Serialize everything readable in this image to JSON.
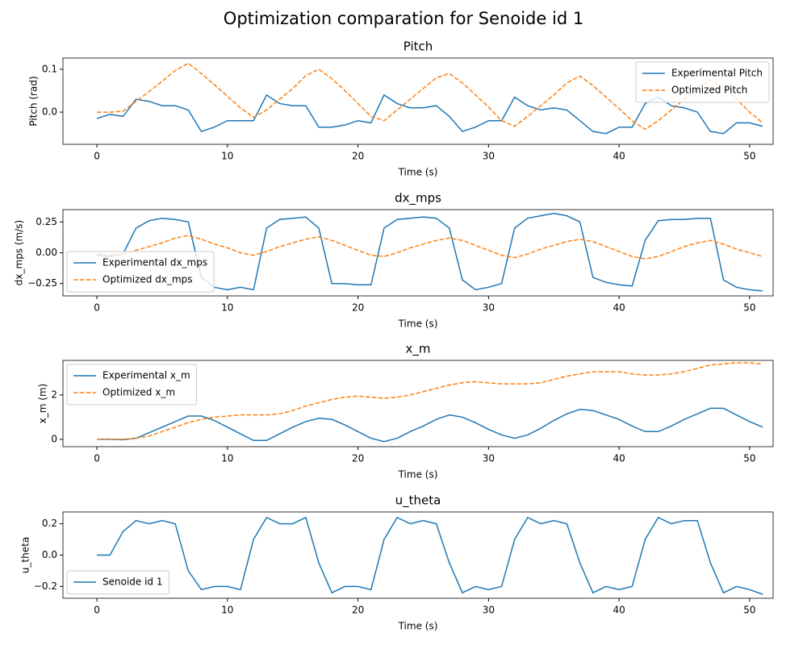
{
  "title": "Optimization comparation for Senoide id 1",
  "chart_data": [
    {
      "type": "line",
      "title": "Pitch",
      "xlabel": "Time (s)",
      "ylabel": "Pitch (rad)",
      "legend": "upper right",
      "x": [
        0,
        1,
        2,
        3,
        4,
        5,
        6,
        7,
        8,
        9,
        10,
        11,
        12,
        13,
        14,
        15,
        16,
        17,
        18,
        19,
        20,
        21,
        22,
        23,
        24,
        25,
        26,
        27,
        28,
        29,
        30,
        31,
        32,
        33,
        34,
        35,
        36,
        37,
        38,
        39,
        40,
        41,
        42,
        43,
        44,
        45,
        46,
        47,
        48,
        49,
        50,
        51
      ],
      "xlim": [
        -2.6,
        51.8
      ],
      "xticks": [
        0,
        10,
        20,
        30,
        40,
        50
      ],
      "ylim": [
        -0.075,
        0.126
      ],
      "yticks": [
        {
          "value": 0,
          "label": "0.0"
        },
        0.1
      ],
      "series": [
        {
          "name": "Experimental Pitch",
          "color": "#1f77b4",
          "linestyle": "solid",
          "values": [
            -0.015,
            -0.005,
            -0.01,
            0.03,
            0.025,
            0.015,
            0.015,
            0.005,
            -0.045,
            -0.035,
            -0.02,
            -0.02,
            -0.02,
            0.04,
            0.02,
            0.015,
            0.015,
            -0.035,
            -0.035,
            -0.03,
            -0.02,
            -0.025,
            0.04,
            0.02,
            0.01,
            0.01,
            0.015,
            -0.01,
            -0.045,
            -0.035,
            -0.02,
            -0.02,
            0.035,
            0.015,
            0.005,
            0.01,
            0.005,
            -0.02,
            -0.045,
            -0.05,
            -0.035,
            -0.035,
            0.02,
            0.035,
            0.015,
            0.01,
            0.0,
            -0.045,
            -0.05,
            -0.025,
            -0.025,
            -0.033
          ]
        },
        {
          "name": "Optimized Pitch",
          "color": "#ff7f0e",
          "linestyle": "dashed",
          "values": [
            0,
            0,
            0.002,
            0.025,
            0.048,
            0.072,
            0.097,
            0.114,
            0.09,
            0.064,
            0.037,
            0.01,
            -0.012,
            0.005,
            0.03,
            0.055,
            0.085,
            0.1,
            0.078,
            0.05,
            0.02,
            -0.01,
            -0.02,
            0.005,
            0.03,
            0.055,
            0.08,
            0.09,
            0.068,
            0.04,
            0.012,
            -0.02,
            -0.033,
            -0.01,
            0.015,
            0.04,
            0.068,
            0.084,
            0.062,
            0.035,
            0.008,
            -0.02,
            -0.04,
            -0.02,
            0.005,
            0.03,
            0.055,
            0.075,
            0.055,
            0.03,
            0.0,
            -0.025
          ]
        }
      ]
    },
    {
      "type": "line",
      "title": "dx_mps",
      "xlabel": "Time (s)",
      "ylabel": "dx_mps (m/s)",
      "legend": "lower left",
      "x": [
        0,
        1,
        2,
        3,
        4,
        5,
        6,
        7,
        8,
        9,
        10,
        11,
        12,
        13,
        14,
        15,
        16,
        17,
        18,
        19,
        20,
        21,
        22,
        23,
        24,
        25,
        26,
        27,
        28,
        29,
        30,
        31,
        32,
        33,
        34,
        35,
        36,
        37,
        38,
        39,
        40,
        41,
        42,
        43,
        44,
        45,
        46,
        47,
        48,
        49,
        50,
        51
      ],
      "xlim": [
        -2.6,
        51.8
      ],
      "xticks": [
        0,
        10,
        20,
        30,
        40,
        50
      ],
      "ylim": [
        -0.35,
        0.35
      ],
      "yticks": [
        {
          "value": -0.25,
          "label": "−0.25"
        },
        {
          "value": 0,
          "label": "0.00"
        },
        0.25
      ],
      "series": [
        {
          "name": "Experimental dx_mps",
          "color": "#1f77b4",
          "linestyle": "solid",
          "values": [
            -0.02,
            -0.03,
            -0.01,
            0.2,
            0.26,
            0.28,
            0.27,
            0.25,
            -0.2,
            -0.28,
            -0.3,
            -0.28,
            -0.3,
            0.2,
            0.27,
            0.28,
            0.29,
            0.2,
            -0.25,
            -0.25,
            -0.26,
            -0.26,
            0.2,
            0.27,
            0.28,
            0.29,
            0.28,
            0.2,
            -0.22,
            -0.3,
            -0.28,
            -0.25,
            0.2,
            0.28,
            0.3,
            0.32,
            0.3,
            0.25,
            -0.2,
            -0.24,
            -0.26,
            -0.27,
            0.1,
            0.26,
            0.27,
            0.27,
            0.28,
            0.28,
            -0.22,
            -0.28,
            -0.3,
            -0.31
          ]
        },
        {
          "name": "Optimized dx_mps",
          "color": "#ff7f0e",
          "linestyle": "dashed",
          "values": [
            -0.01,
            -0.02,
            -0.01,
            0.02,
            0.05,
            0.08,
            0.12,
            0.14,
            0.11,
            0.07,
            0.04,
            0.0,
            -0.02,
            0.01,
            0.05,
            0.08,
            0.11,
            0.13,
            0.1,
            0.06,
            0.02,
            -0.02,
            -0.03,
            0.0,
            0.04,
            0.07,
            0.1,
            0.12,
            0.1,
            0.06,
            0.02,
            -0.02,
            -0.04,
            -0.01,
            0.03,
            0.06,
            0.09,
            0.11,
            0.09,
            0.05,
            0.01,
            -0.03,
            -0.05,
            -0.03,
            0.01,
            0.05,
            0.08,
            0.1,
            0.07,
            0.03,
            0.0,
            -0.03
          ]
        }
      ]
    },
    {
      "type": "line",
      "title": "x_m",
      "xlabel": "Time (s)",
      "ylabel": "x_m (m)",
      "legend": "upper left",
      "x": [
        0,
        1,
        2,
        3,
        4,
        5,
        6,
        7,
        8,
        9,
        10,
        11,
        12,
        13,
        14,
        15,
        16,
        17,
        18,
        19,
        20,
        21,
        22,
        23,
        24,
        25,
        26,
        27,
        28,
        29,
        30,
        31,
        32,
        33,
        34,
        35,
        36,
        37,
        38,
        39,
        40,
        41,
        42,
        43,
        44,
        45,
        46,
        47,
        48,
        49,
        50,
        51
      ],
      "xlim": [
        -2.6,
        51.8
      ],
      "xticks": [
        0,
        10,
        20,
        30,
        40,
        50
      ],
      "ylim": [
        -0.33,
        3.56
      ],
      "yticks": [
        0,
        2
      ],
      "series": [
        {
          "name": "Experimental x_m",
          "color": "#1f77b4",
          "linestyle": "solid",
          "values": [
            0,
            0,
            -0.02,
            0.05,
            0.3,
            0.55,
            0.8,
            1.05,
            1.05,
            0.85,
            0.55,
            0.25,
            -0.05,
            -0.05,
            0.25,
            0.55,
            0.8,
            0.95,
            0.9,
            0.65,
            0.35,
            0.05,
            -0.1,
            0.05,
            0.35,
            0.6,
            0.9,
            1.1,
            1.0,
            0.75,
            0.45,
            0.2,
            0.05,
            0.2,
            0.5,
            0.85,
            1.15,
            1.35,
            1.3,
            1.1,
            0.9,
            0.6,
            0.35,
            0.35,
            0.6,
            0.9,
            1.15,
            1.4,
            1.4,
            1.1,
            0.8,
            0.55
          ]
        },
        {
          "name": "Optimized x_m",
          "color": "#ff7f0e",
          "linestyle": "dashed",
          "values": [
            0,
            0,
            0,
            0.05,
            0.15,
            0.35,
            0.55,
            0.75,
            0.9,
            1.0,
            1.05,
            1.1,
            1.1,
            1.1,
            1.15,
            1.3,
            1.5,
            1.65,
            1.8,
            1.9,
            1.95,
            1.9,
            1.85,
            1.9,
            2.0,
            2.15,
            2.3,
            2.45,
            2.55,
            2.6,
            2.55,
            2.5,
            2.5,
            2.5,
            2.55,
            2.7,
            2.85,
            2.95,
            3.05,
            3.05,
            3.05,
            2.95,
            2.9,
            2.9,
            2.95,
            3.05,
            3.2,
            3.35,
            3.4,
            3.45,
            3.45,
            3.4
          ]
        }
      ]
    },
    {
      "type": "line",
      "title": "u_theta",
      "xlabel": "Time (s)",
      "ylabel": "u_theta",
      "legend": "lower left",
      "x": [
        0,
        1,
        2,
        3,
        4,
        5,
        6,
        7,
        8,
        9,
        10,
        11,
        12,
        13,
        14,
        15,
        16,
        17,
        18,
        19,
        20,
        21,
        22,
        23,
        24,
        25,
        26,
        27,
        28,
        29,
        30,
        31,
        32,
        33,
        34,
        35,
        36,
        37,
        38,
        39,
        40,
        41,
        42,
        43,
        44,
        45,
        46,
        47,
        48,
        49,
        50,
        51
      ],
      "xlim": [
        -2.6,
        51.8
      ],
      "xticks": [
        0,
        10,
        20,
        30,
        40,
        50
      ],
      "ylim": [
        -0.275,
        0.275
      ],
      "yticks": [
        {
          "value": -0.2,
          "label": "−0.2"
        },
        {
          "value": 0,
          "label": "0.0"
        },
        0.2
      ],
      "series": [
        {
          "name": "Senoide id 1",
          "color": "#1f77b4",
          "linestyle": "solid",
          "values": [
            0,
            0,
            0.15,
            0.22,
            0.2,
            0.22,
            0.2,
            -0.1,
            -0.22,
            -0.2,
            -0.2,
            -0.22,
            0.1,
            0.24,
            0.2,
            0.2,
            0.24,
            -0.05,
            -0.24,
            -0.2,
            -0.2,
            -0.22,
            0.1,
            0.24,
            0.2,
            0.22,
            0.2,
            -0.05,
            -0.24,
            -0.2,
            -0.22,
            -0.2,
            0.1,
            0.24,
            0.2,
            0.22,
            0.2,
            -0.05,
            -0.24,
            -0.2,
            -0.22,
            -0.2,
            0.1,
            0.24,
            0.2,
            0.22,
            0.22,
            -0.05,
            -0.24,
            -0.2,
            -0.22,
            -0.25
          ]
        }
      ]
    }
  ]
}
